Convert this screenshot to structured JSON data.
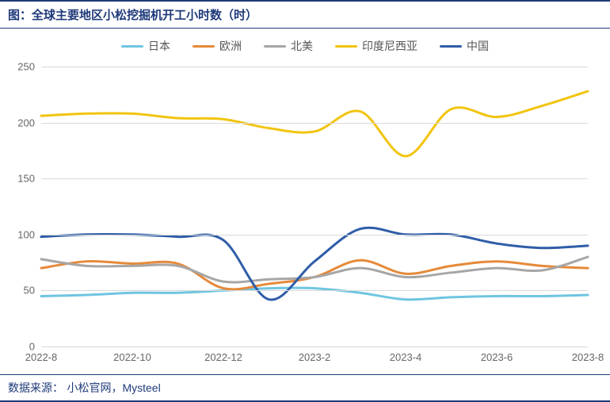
{
  "title": "图：全球主要地区小松挖掘机开工小时数（时）",
  "footer_prefix": "数据来源：",
  "footer_source": "小松官网，Mysteel",
  "chart": {
    "type": "line",
    "background_color": "#ffffff",
    "grid_color": "#d9d9d9",
    "axis_text_color": "#666666",
    "title_color": "#1f3a7a",
    "title_fontsize": 15,
    "label_fontsize": 13,
    "line_width": 3,
    "ylim": [
      0,
      250
    ],
    "ytick_step": 50,
    "yticks": [
      0,
      50,
      100,
      150,
      200,
      250
    ],
    "categories": [
      "2022-8",
      "2022-9",
      "2022-10",
      "2022-11",
      "2022-12",
      "2023-1",
      "2023-2",
      "2023-3",
      "2023-4",
      "2023-5",
      "2023-6",
      "2023-7",
      "2023-8"
    ],
    "xtick_indices": [
      0,
      2,
      4,
      6,
      8,
      10,
      12
    ],
    "xtick_labels": [
      "2022-8",
      "2022-10",
      "2022-12",
      "2023-2",
      "2023-4",
      "2023-6",
      "2023-8"
    ],
    "series": [
      {
        "name": "日本",
        "color": "#6fc5e0",
        "values": [
          45,
          46,
          48,
          48,
          50,
          52,
          52,
          48,
          42,
          44,
          45,
          45,
          46
        ]
      },
      {
        "name": "欧洲",
        "color": "#e58a3a",
        "values": [
          70,
          76,
          74,
          74,
          52,
          56,
          62,
          77,
          65,
          72,
          76,
          72,
          70
        ]
      },
      {
        "name": "北美",
        "color": "#a6a6a6",
        "values": [
          78,
          72,
          72,
          72,
          58,
          60,
          62,
          70,
          62,
          66,
          70,
          68,
          80
        ]
      },
      {
        "name": "印度尼西亚",
        "color": "#f2c40f",
        "values": [
          206,
          208,
          208,
          204,
          203,
          195,
          192,
          210,
          170,
          212,
          205,
          215,
          228
        ]
      },
      {
        "name": "中国",
        "color": "#2f5da8",
        "values": [
          98,
          100,
          100,
          98,
          95,
          42,
          76,
          105,
          100,
          100,
          92,
          88,
          90
        ]
      }
    ],
    "legend_position": "top"
  }
}
